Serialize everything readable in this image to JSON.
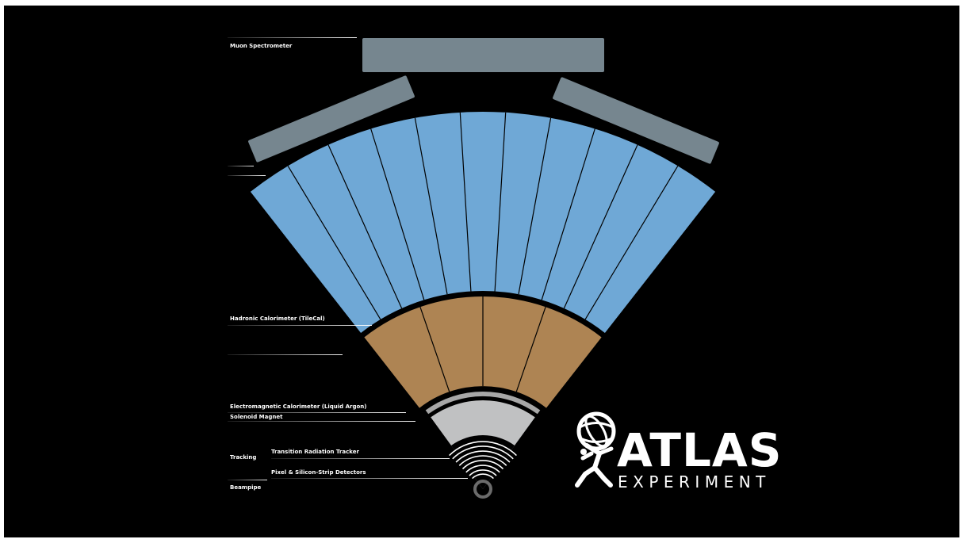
{
  "labels": {
    "muon": "Muon Spectrometer",
    "hadronic": "Hadronic Calorimeter (TileCal)",
    "em": "Electromagnetic Calorimeter (Liquid Argon)",
    "solenoid": "Solenoid Magnet",
    "tracking": "Tracking",
    "trt": "Transition Radiation Tracker",
    "pixel": "Pixel & Silicon-Strip Detectors",
    "beampipe": "Beampipe"
  },
  "logo": {
    "name": "ATLAS",
    "subtitle": "EXPERIMENT"
  },
  "colors": {
    "background": "#000000",
    "muon": "#76868f",
    "hadronic": "#6fa8d6",
    "em": "#ae8453",
    "solenoid": "#a7a7a7",
    "tracker": "#c0c1c2",
    "beampipe": "#6b6b6b",
    "label": "#ffffff"
  },
  "segments": {
    "hadronic": 11,
    "em": 4
  }
}
